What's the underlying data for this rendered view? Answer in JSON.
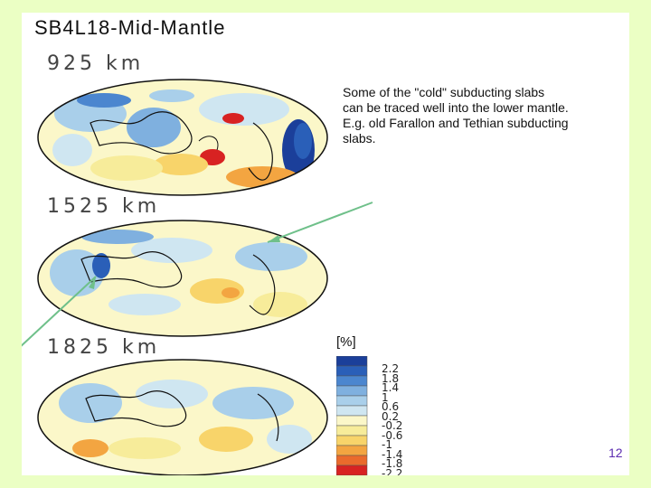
{
  "slide": {
    "title": "SB4L18-Mid-Mantle",
    "page_number": "12"
  },
  "maps": [
    {
      "depth_label": "925 km"
    },
    {
      "depth_label": "1525 km"
    },
    {
      "depth_label": "1825 km"
    }
  ],
  "annotation": {
    "lines": [
      "Some of the \"cold\" subducting slabs",
      "can be traced well into the lower mantle.",
      "E.g. old Farallon and Tethian subducting",
      "slabs."
    ]
  },
  "colorbar": {
    "unit": "[%]",
    "ticks": [
      "2.2",
      "1.8",
      "1.4",
      "1",
      "0.6",
      "0.2",
      "-0.2",
      "-0.6",
      "-1",
      "-1.4",
      "-1.8",
      "-2.2"
    ],
    "colors": [
      "#1b3f9a",
      "#2a5fb8",
      "#4b86cf",
      "#7fb0df",
      "#a9cfea",
      "#cfe6f1",
      "#fbf7c9",
      "#f7ec9a",
      "#f8d46a",
      "#f3a541",
      "#ea6a2c",
      "#d82222"
    ]
  },
  "colors": {
    "background": "#ebffc4",
    "arrow": "#6fc08a",
    "cold": "#2a5fb8",
    "hot": "#d82222"
  }
}
